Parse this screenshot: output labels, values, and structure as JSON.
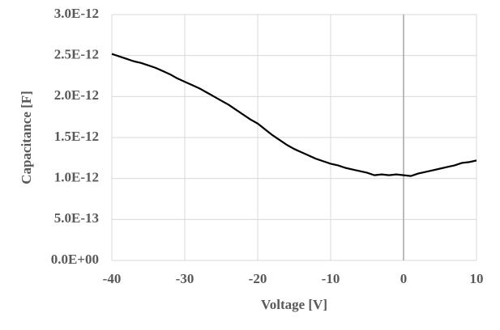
{
  "chart_data": {
    "type": "line",
    "x_label": "Voltage [V]",
    "y_label": "Capacitance [F]",
    "x": [
      -40,
      -39,
      -38,
      -37,
      -36,
      -35,
      -34,
      -33,
      -32,
      -31,
      -30,
      -29,
      -28,
      -27,
      -26,
      -25,
      -24,
      -23,
      -22,
      -21,
      -20,
      -19,
      -18,
      -17,
      -16,
      -15,
      -14,
      -13,
      -12,
      -11,
      -10,
      -9,
      -8,
      -7,
      -6,
      -5,
      -4,
      -3,
      -2,
      -1,
      0,
      1,
      2,
      3,
      4,
      5,
      6,
      7,
      8,
      9,
      10
    ],
    "series": [
      {
        "color": "#000000",
        "values": [
          2.52e-12,
          2.49e-12,
          2.46e-12,
          2.43e-12,
          2.41e-12,
          2.38e-12,
          2.35e-12,
          2.31e-12,
          2.27e-12,
          2.22e-12,
          2.18e-12,
          2.14e-12,
          2.1e-12,
          2.05e-12,
          2e-12,
          1.95e-12,
          1.9e-12,
          1.84e-12,
          1.78e-12,
          1.72e-12,
          1.67e-12,
          1.6e-12,
          1.53e-12,
          1.47e-12,
          1.41e-12,
          1.36e-12,
          1.32e-12,
          1.28e-12,
          1.24e-12,
          1.21e-12,
          1.18e-12,
          1.16e-12,
          1.13e-12,
          1.11e-12,
          1.09e-12,
          1.07e-12,
          1.04e-12,
          1.05e-12,
          1.04e-12,
          1.05e-12,
          1.04e-12,
          1.03e-12,
          1.06e-12,
          1.08e-12,
          1.1e-12,
          1.12e-12,
          1.14e-12,
          1.16e-12,
          1.19e-12,
          1.2e-12,
          1.22e-12
        ]
      }
    ],
    "xlim": [
      -40,
      10
    ],
    "xticks": [
      -40,
      -30,
      -20,
      -10,
      0,
      10
    ],
    "ylim": [
      0,
      3e-12
    ],
    "yticks": [
      {
        "value": 0,
        "label": "0.0E+00"
      },
      {
        "value": 5e-13,
        "label": "5.0E-13"
      },
      {
        "value": 1e-12,
        "label": "1.0E-12"
      },
      {
        "value": 1.5e-12,
        "label": "1.5E-12"
      },
      {
        "value": 2e-12,
        "label": "2.0E-12"
      },
      {
        "value": 2.5e-12,
        "label": "2.5E-12"
      },
      {
        "value": 3e-12,
        "label": "3.0E-12"
      }
    ],
    "grid": true
  }
}
